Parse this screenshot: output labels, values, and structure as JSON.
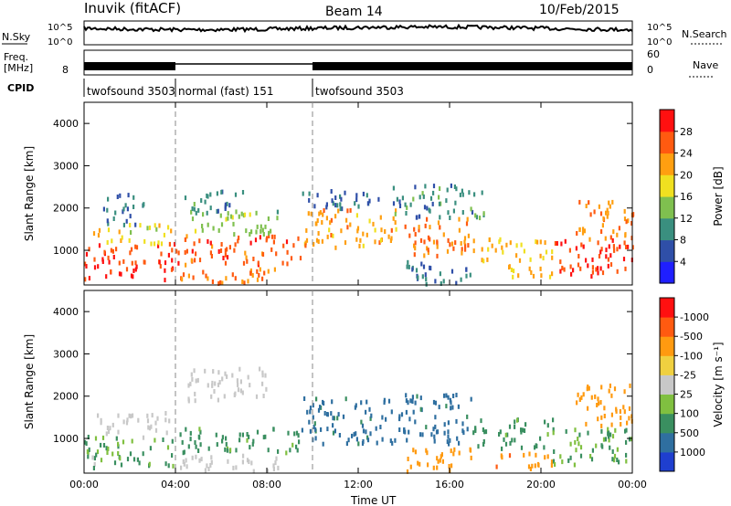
{
  "header": {
    "station": "Inuvik (fitACF)",
    "beam": "Beam 14",
    "date": "10/Feb/2015"
  },
  "status_panels": {
    "nsky_label": "N.Sky",
    "nsky_ticks": [
      "10^5",
      "10^0"
    ],
    "nsearch_label": "N.Search",
    "nsearch_ticks": [
      "10^5",
      "10^0"
    ],
    "freq_label": "Freq.",
    "freq_unit": "[MHz]",
    "freq_tick": "8",
    "nave_label": "Nave",
    "nave_ticks": [
      "60",
      "0"
    ],
    "cpid_label": "CPID",
    "cpid_segments": [
      {
        "label": "twofsound 3503",
        "start_hour": 0,
        "end_hour": 4
      },
      {
        "label": "normal (fast) 151",
        "start_hour": 4,
        "end_hour": 10
      },
      {
        "label": "twofsound 3503",
        "start_hour": 10,
        "end_hour": 24
      }
    ]
  },
  "chart_data": [
    {
      "type": "heatmap",
      "title": "",
      "xlabel": "",
      "ylabel": "Slant Range [km]",
      "xlim": [
        0,
        24
      ],
      "ylim": [
        180,
        4500
      ],
      "yticks": [
        1000,
        2000,
        3000,
        4000
      ],
      "colorbar_label": "Power [dB]",
      "colorbar_ticks": [
        4,
        8,
        12,
        16,
        20,
        24,
        28
      ],
      "colorbar_colors": [
        "#1f1fff",
        "#2f4fa8",
        "#3a8f7f",
        "#7fc04f",
        "#f0e020",
        "#ff9f10",
        "#ff5a10",
        "#ff1010"
      ],
      "regions": [
        {
          "t0": 0.0,
          "t1": 4.0,
          "r0": 350,
          "r1": 1200,
          "level": 28
        },
        {
          "t0": 0.3,
          "t1": 3.8,
          "r0": 1200,
          "r1": 1650,
          "level": 18
        },
        {
          "t0": 0.8,
          "t1": 2.6,
          "r0": 1650,
          "r1": 2400,
          "level": 8
        },
        {
          "t0": 4.0,
          "t1": 9.5,
          "r0": 700,
          "r1": 1400,
          "level": 26
        },
        {
          "t0": 4.5,
          "t1": 8.5,
          "r0": 1400,
          "r1": 2000,
          "level": 14
        },
        {
          "t0": 4.3,
          "t1": 7.0,
          "r0": 1900,
          "r1": 2450,
          "level": 10
        },
        {
          "t0": 4.0,
          "t1": 8.5,
          "r0": 250,
          "r1": 650,
          "level": 24
        },
        {
          "t0": 9.5,
          "t1": 13.8,
          "r0": 1100,
          "r1": 2000,
          "level": 22
        },
        {
          "t0": 9.5,
          "t1": 13.8,
          "r0": 2000,
          "r1": 2450,
          "level": 8
        },
        {
          "t0": 13.8,
          "t1": 17.0,
          "r0": 900,
          "r1": 1800,
          "level": 24
        },
        {
          "t0": 13.5,
          "t1": 17.5,
          "r0": 1800,
          "r1": 2600,
          "level": 10
        },
        {
          "t0": 14.0,
          "t1": 17.0,
          "r0": 250,
          "r1": 800,
          "level": 8
        },
        {
          "t0": 17.0,
          "t1": 20.5,
          "r0": 800,
          "r1": 1350,
          "level": 20
        },
        {
          "t0": 18.5,
          "t1": 20.5,
          "r0": 300,
          "r1": 700,
          "level": 20
        },
        {
          "t0": 20.5,
          "t1": 24.0,
          "r0": 400,
          "r1": 1300,
          "level": 28
        },
        {
          "t0": 21.5,
          "t1": 24.0,
          "r0": 1300,
          "r1": 2300,
          "level": 24
        }
      ]
    },
    {
      "type": "heatmap",
      "title": "",
      "xlabel": "Time UT",
      "ylabel": "Slant Range [km]",
      "xlim": [
        0,
        24
      ],
      "ylim": [
        180,
        4500
      ],
      "xticks": [
        "00:00",
        "04:00",
        "08:00",
        "12:00",
        "16:00",
        "20:00",
        "00:00"
      ],
      "yticks": [
        1000,
        2000,
        3000,
        4000
      ],
      "colorbar_label": "Velocity [m s⁻¹]",
      "colorbar_ticks": [
        1000,
        500,
        100,
        25,
        -25,
        -100,
        -500,
        -1000
      ],
      "colorbar_colors": [
        "#1f3fcf",
        "#2f6fa0",
        "#3a8f60",
        "#80c040",
        "#c8c8c8",
        "#f0d040",
        "#ff9a10",
        "#ff5a10",
        "#ff1010"
      ],
      "regions": [
        {
          "t0": 0.0,
          "t1": 4.0,
          "r0": 350,
          "r1": 1100,
          "level": 120
        },
        {
          "t0": 0.5,
          "t1": 3.8,
          "r0": 1100,
          "r1": 1650,
          "level": 0
        },
        {
          "t0": 4.0,
          "t1": 9.5,
          "r0": 700,
          "r1": 1300,
          "level": 200
        },
        {
          "t0": 4.5,
          "t1": 8.0,
          "r0": 1900,
          "r1": 2700,
          "level": 0
        },
        {
          "t0": 4.0,
          "t1": 8.5,
          "r0": 250,
          "r1": 650,
          "level": 0
        },
        {
          "t0": 9.5,
          "t1": 13.8,
          "r0": 900,
          "r1": 2000,
          "level": 600
        },
        {
          "t0": 13.8,
          "t1": 17.0,
          "r0": 900,
          "r1": 2100,
          "level": 600
        },
        {
          "t0": 14.0,
          "t1": 17.0,
          "r0": 250,
          "r1": 800,
          "level": -300
        },
        {
          "t0": 17.0,
          "t1": 20.5,
          "r0": 800,
          "r1": 1500,
          "level": 200
        },
        {
          "t0": 18.0,
          "t1": 20.5,
          "r0": 300,
          "r1": 700,
          "level": -400
        },
        {
          "t0": 20.5,
          "t1": 24.0,
          "r0": 400,
          "r1": 1300,
          "level": 150
        },
        {
          "t0": 21.5,
          "t1": 24.0,
          "r0": 1300,
          "r1": 2300,
          "level": -300
        }
      ]
    }
  ]
}
